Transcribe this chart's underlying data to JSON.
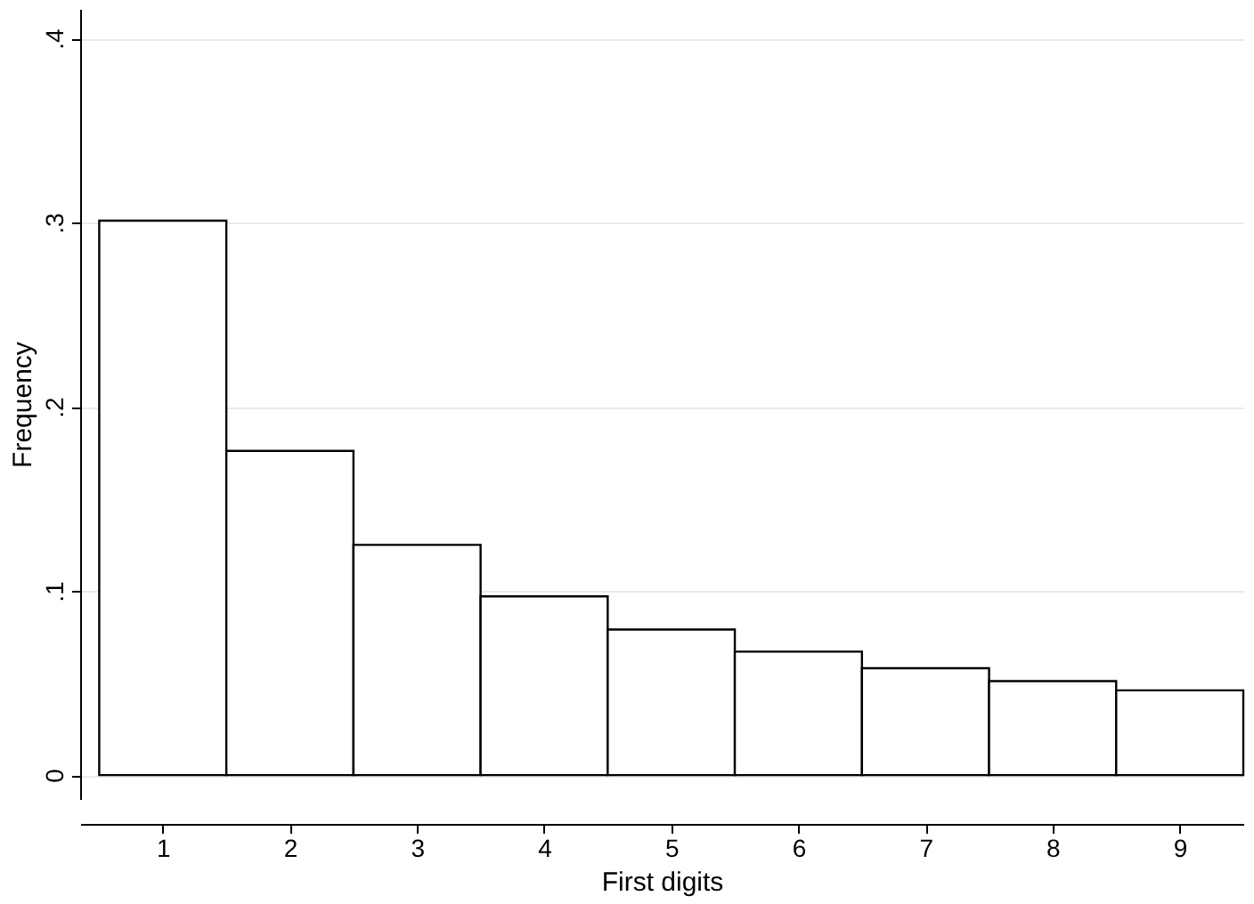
{
  "chart_data": {
    "type": "bar",
    "xlabel": "First digits",
    "ylabel": "Frequency",
    "categories": [
      "1",
      "2",
      "3",
      "4",
      "5",
      "6",
      "7",
      "8",
      "9"
    ],
    "values": [
      0.301,
      0.176,
      0.125,
      0.097,
      0.079,
      0.067,
      0.058,
      0.051,
      0.046
    ],
    "color": "#ffffff",
    "ylim": [
      -0.013,
      0.416
    ],
    "yticks": [
      0,
      {
        "value": 0.1,
        "label": ".1"
      },
      {
        "value": 0.2,
        "label": ".2"
      },
      {
        "value": 0.3,
        "label": ".3"
      },
      {
        "value": 0.4,
        "label": ".4"
      }
    ],
    "grid": "y"
  }
}
